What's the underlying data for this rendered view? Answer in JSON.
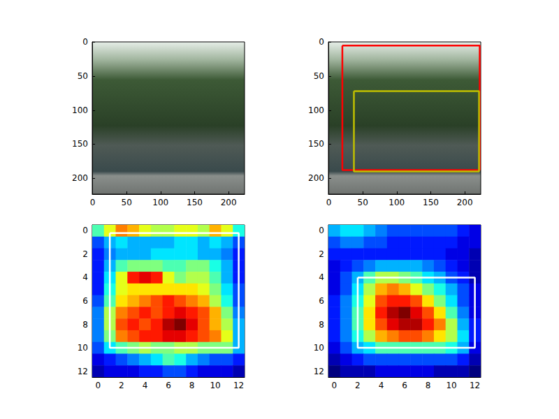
{
  "chart_data": [
    {
      "type": "image",
      "xlim": [
        -0.5,
        223.5
      ],
      "ylim": [
        223.5,
        -0.5
      ],
      "xticks": [
        0,
        50,
        100,
        150,
        200
      ],
      "yticks": [
        0,
        50,
        100,
        150,
        200
      ]
    },
    {
      "type": "image",
      "xlim": [
        -0.5,
        223.5
      ],
      "ylim": [
        223.5,
        -0.5
      ],
      "xticks": [
        0,
        50,
        100,
        150,
        200
      ],
      "yticks": [
        0,
        50,
        100,
        150,
        200
      ],
      "boxes": [
        {
          "color": "#ff0000",
          "x": [
            20,
            222
          ],
          "y": [
            5,
            188
          ]
        },
        {
          "color": "#bfbf00",
          "x": [
            37,
            221
          ],
          "y": [
            72,
            190
          ]
        }
      ]
    },
    {
      "type": "heatmap",
      "xlim": [
        -0.5,
        12.5
      ],
      "ylim": [
        12.5,
        -0.5
      ],
      "xticks": [
        0,
        2,
        4,
        6,
        8,
        10,
        12
      ],
      "yticks": [
        0,
        2,
        4,
        6,
        8,
        10,
        12
      ],
      "color_range": [
        0,
        1
      ],
      "cells": [
        [
          0.45,
          0.6,
          0.75,
          0.7,
          0.6,
          0.55,
          0.55,
          0.6,
          0.6,
          0.55,
          0.7,
          0.6,
          0.4
        ],
        [
          0.2,
          0.3,
          0.35,
          0.3,
          0.3,
          0.3,
          0.3,
          0.35,
          0.35,
          0.3,
          0.35,
          0.3,
          0.2
        ],
        [
          0.15,
          0.25,
          0.3,
          0.3,
          0.3,
          0.35,
          0.35,
          0.35,
          0.35,
          0.3,
          0.3,
          0.25,
          0.15
        ],
        [
          0.15,
          0.3,
          0.45,
          0.5,
          0.5,
          0.5,
          0.45,
          0.45,
          0.5,
          0.5,
          0.4,
          0.3,
          0.15
        ],
        [
          0.15,
          0.35,
          0.6,
          0.85,
          0.9,
          0.85,
          0.6,
          0.5,
          0.55,
          0.55,
          0.45,
          0.3,
          0.15
        ],
        [
          0.15,
          0.4,
          0.6,
          0.65,
          0.65,
          0.65,
          0.65,
          0.65,
          0.65,
          0.6,
          0.5,
          0.35,
          0.2
        ],
        [
          0.2,
          0.45,
          0.65,
          0.7,
          0.75,
          0.8,
          0.85,
          0.8,
          0.75,
          0.7,
          0.55,
          0.4,
          0.2
        ],
        [
          0.25,
          0.55,
          0.75,
          0.8,
          0.85,
          0.8,
          0.85,
          0.9,
          0.85,
          0.8,
          0.7,
          0.5,
          0.25
        ],
        [
          0.25,
          0.55,
          0.8,
          0.85,
          0.8,
          0.85,
          0.95,
          1.0,
          0.9,
          0.8,
          0.7,
          0.55,
          0.3
        ],
        [
          0.25,
          0.5,
          0.75,
          0.8,
          0.85,
          0.85,
          0.9,
          0.9,
          0.85,
          0.8,
          0.75,
          0.6,
          0.3
        ],
        [
          0.2,
          0.35,
          0.45,
          0.5,
          0.55,
          0.5,
          0.5,
          0.55,
          0.55,
          0.5,
          0.5,
          0.5,
          0.3
        ],
        [
          0.1,
          0.15,
          0.2,
          0.25,
          0.3,
          0.35,
          0.45,
          0.4,
          0.3,
          0.25,
          0.2,
          0.2,
          0.15
        ],
        [
          0.05,
          0.1,
          0.1,
          0.1,
          0.15,
          0.15,
          0.2,
          0.2,
          0.15,
          0.1,
          0.1,
          0.1,
          0.05
        ]
      ],
      "boxes": [
        {
          "color": "#ffffff",
          "x": [
            1,
            12
          ],
          "y": [
            0.2,
            10
          ]
        }
      ]
    },
    {
      "type": "heatmap",
      "xlim": [
        -0.5,
        12.5
      ],
      "ylim": [
        12.5,
        -0.5
      ],
      "xticks": [
        0,
        2,
        4,
        6,
        8,
        10,
        12
      ],
      "yticks": [
        0,
        2,
        4,
        6,
        8,
        10,
        12
      ],
      "color_range": [
        0,
        1
      ],
      "cells": [
        [
          0.3,
          0.35,
          0.35,
          0.3,
          0.25,
          0.2,
          0.2,
          0.2,
          0.2,
          0.2,
          0.2,
          0.15,
          0.1
        ],
        [
          0.2,
          0.25,
          0.25,
          0.2,
          0.2,
          0.15,
          0.15,
          0.15,
          0.15,
          0.15,
          0.15,
          0.1,
          0.1
        ],
        [
          0.15,
          0.15,
          0.15,
          0.15,
          0.15,
          0.15,
          0.15,
          0.15,
          0.15,
          0.15,
          0.1,
          0.1,
          0.05
        ],
        [
          0.1,
          0.15,
          0.2,
          0.25,
          0.3,
          0.3,
          0.3,
          0.3,
          0.25,
          0.2,
          0.15,
          0.1,
          0.05
        ],
        [
          0.1,
          0.2,
          0.3,
          0.45,
          0.55,
          0.55,
          0.5,
          0.45,
          0.35,
          0.3,
          0.2,
          0.15,
          0.05
        ],
        [
          0.1,
          0.2,
          0.35,
          0.55,
          0.7,
          0.75,
          0.7,
          0.6,
          0.5,
          0.4,
          0.3,
          0.2,
          0.1
        ],
        [
          0.15,
          0.25,
          0.4,
          0.6,
          0.8,
          0.85,
          0.85,
          0.8,
          0.65,
          0.5,
          0.35,
          0.2,
          0.1
        ],
        [
          0.15,
          0.25,
          0.45,
          0.65,
          0.85,
          0.95,
          1.0,
          0.9,
          0.8,
          0.65,
          0.45,
          0.25,
          0.1
        ],
        [
          0.15,
          0.25,
          0.45,
          0.65,
          0.8,
          0.9,
          0.95,
          0.95,
          0.85,
          0.75,
          0.55,
          0.3,
          0.15
        ],
        [
          0.15,
          0.25,
          0.4,
          0.55,
          0.7,
          0.75,
          0.8,
          0.8,
          0.75,
          0.65,
          0.55,
          0.35,
          0.15
        ],
        [
          0.1,
          0.2,
          0.3,
          0.35,
          0.45,
          0.45,
          0.45,
          0.45,
          0.45,
          0.45,
          0.4,
          0.3,
          0.1
        ],
        [
          0.05,
          0.1,
          0.15,
          0.2,
          0.2,
          0.2,
          0.2,
          0.2,
          0.2,
          0.2,
          0.2,
          0.15,
          0.05
        ],
        [
          0.0,
          0.05,
          0.05,
          0.05,
          0.1,
          0.1,
          0.1,
          0.1,
          0.1,
          0.05,
          0.05,
          0.05,
          0.0
        ]
      ],
      "boxes": [
        {
          "color": "#ffffff",
          "x": [
            2,
            12
          ],
          "y": [
            4,
            10
          ]
        }
      ]
    }
  ]
}
